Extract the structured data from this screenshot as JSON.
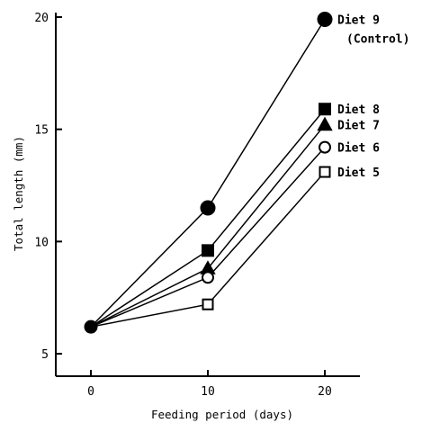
{
  "chart_data": {
    "type": "line",
    "xlabel": "Feeding period (days)",
    "ylabel": "Total length (mm)",
    "x": [
      0,
      10,
      20
    ],
    "xlim": [
      -3,
      23
    ],
    "ylim": [
      4,
      20.2
    ],
    "xticks": [
      0,
      10,
      20
    ],
    "yticks": [
      5,
      10,
      15,
      20
    ],
    "grid": false,
    "series": [
      {
        "name": "Diet 9",
        "note": "(Control)",
        "marker": "filled-circle",
        "values": [
          6.2,
          11.5,
          19.9
        ]
      },
      {
        "name": "Diet 8",
        "marker": "filled-square",
        "values": [
          6.2,
          9.6,
          15.9
        ]
      },
      {
        "name": "Diet 7",
        "marker": "filled-triangle",
        "values": [
          6.2,
          8.8,
          15.2
        ]
      },
      {
        "name": "Diet 6",
        "marker": "open-circle",
        "values": [
          6.2,
          8.4,
          14.2
        ]
      },
      {
        "name": "Diet 5",
        "marker": "open-square",
        "values": [
          6.2,
          7.2,
          13.1
        ]
      }
    ]
  }
}
